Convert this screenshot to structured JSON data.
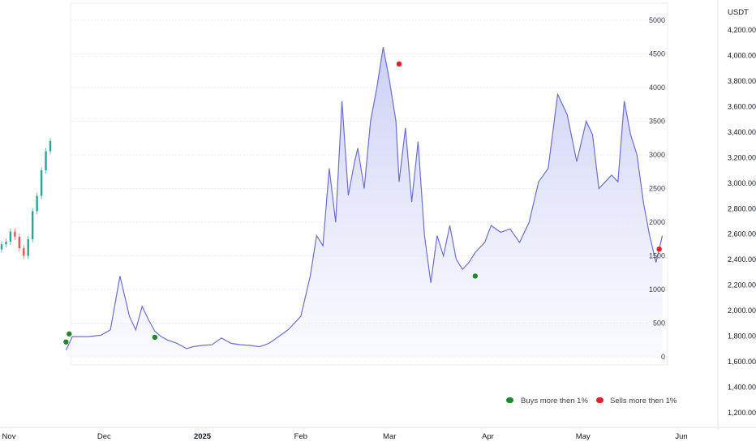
{
  "price_axis": {
    "unit": "USDT",
    "labels": [
      "4,200.00",
      "4,000.00",
      "3,800.00",
      "3,600.00",
      "3,400.00",
      "3,200.00",
      "3,000.00",
      "2,800.00",
      "2,600.00",
      "2,400.00",
      "2,200.00",
      "2,000.00",
      "1,800.00",
      "1,600.00",
      "1,400.00",
      "1,200.00"
    ]
  },
  "time_axis": {
    "labels": [
      {
        "text": "Nov",
        "bold": false
      },
      {
        "text": "Dec",
        "bold": false
      },
      {
        "text": "2025",
        "bold": true
      },
      {
        "text": "Feb",
        "bold": false
      },
      {
        "text": "Mar",
        "bold": false
      },
      {
        "text": "Apr",
        "bold": false
      },
      {
        "text": "May",
        "bold": false
      },
      {
        "text": "Jun",
        "bold": false
      }
    ]
  },
  "legend": {
    "buys_label": "Buys more then 1%",
    "sells_label": "Sells more then 1%",
    "buys_color": "#1e8a2e",
    "sells_color": "#e0202a"
  },
  "colors": {
    "line": "#6b6fcf",
    "fill_top": "#c9ccf5",
    "fill_bottom": "#f6f7fd",
    "grid": "#e1e3ea",
    "candle_up": "#26a69a",
    "candle_down": "#ef5350"
  },
  "chart_data": [
    {
      "type": "area",
      "ylim": [
        0,
        5000
      ],
      "y_ticks": [
        "5000",
        "4500",
        "4000",
        "3500",
        "3000",
        "2500",
        "2000",
        "1500",
        "1000",
        "500",
        "0"
      ],
      "x": [
        "2024-11-19",
        "2024-11-21",
        "2024-11-23",
        "2024-11-26",
        "2024-11-30",
        "2024-12-03",
        "2024-12-06",
        "2024-12-07",
        "2024-12-09",
        "2024-12-11",
        "2024-12-13",
        "2024-12-15",
        "2024-12-17",
        "2024-12-19",
        "2024-12-21",
        "2024-12-24",
        "2024-12-27",
        "2024-12-29",
        "2025-01-01",
        "2025-01-04",
        "2025-01-07",
        "2025-01-10",
        "2025-01-13",
        "2025-01-16",
        "2025-01-19",
        "2025-01-22",
        "2025-01-25",
        "2025-01-28",
        "2025-02-01",
        "2025-02-04",
        "2025-02-06",
        "2025-02-08",
        "2025-02-10",
        "2025-02-12",
        "2025-02-14",
        "2025-02-16",
        "2025-02-18",
        "2025-02-19",
        "2025-02-21",
        "2025-02-23",
        "2025-02-25",
        "2025-02-27",
        "2025-03-01",
        "2025-03-03",
        "2025-03-04",
        "2025-03-06",
        "2025-03-08",
        "2025-03-10",
        "2025-03-12",
        "2025-03-14",
        "2025-03-16",
        "2025-03-18",
        "2025-03-20",
        "2025-03-22",
        "2025-03-24",
        "2025-03-26",
        "2025-03-28",
        "2025-03-31",
        "2025-04-02",
        "2025-04-05",
        "2025-04-08",
        "2025-04-11",
        "2025-04-14",
        "2025-04-17",
        "2025-04-20",
        "2025-04-23",
        "2025-04-26",
        "2025-04-29",
        "2025-05-02",
        "2025-05-04",
        "2025-05-06",
        "2025-05-08",
        "2025-05-10",
        "2025-05-12",
        "2025-05-14",
        "2025-05-16",
        "2025-05-18",
        "2025-05-20",
        "2025-05-22",
        "2025-05-24",
        "2025-05-26"
      ],
      "values": [
        100,
        300,
        300,
        300,
        320,
        400,
        1200,
        1000,
        600,
        400,
        750,
        550,
        380,
        300,
        250,
        200,
        120,
        150,
        170,
        180,
        280,
        200,
        180,
        170,
        150,
        200,
        300,
        400,
        600,
        1200,
        1800,
        1650,
        2800,
        2000,
        3800,
        2400,
        2900,
        3100,
        2500,
        3500,
        4000,
        4600,
        4100,
        3500,
        2600,
        3400,
        2300,
        3200,
        1800,
        1100,
        1800,
        1500,
        1950,
        1450,
        1300,
        1400,
        1550,
        1700,
        1950,
        1850,
        1900,
        1700,
        2000,
        2600,
        2800,
        3900,
        3600,
        2900,
        3500,
        3300,
        2500,
        2600,
        2700,
        2600,
        3800,
        3300,
        3000,
        2300,
        1800,
        1400,
        1800
      ],
      "buys": [
        {
          "x": "2024-11-19",
          "value": 220
        },
        {
          "x": "2024-11-20",
          "value": 340
        },
        {
          "x": "2024-12-17",
          "value": 290
        },
        {
          "x": "2025-03-28",
          "value": 1200
        }
      ],
      "sells": [
        {
          "x": "2025-03-04",
          "value": 4350
        },
        {
          "x": "2025-05-25",
          "value": 1600
        }
      ],
      "legend": [
        "Buys more then 1%",
        "Sells more then 1%"
      ],
      "legend_position": "bottom-right",
      "grid": true
    },
    {
      "type": "candlestick",
      "note_label": "",
      "x": [
        "2024-11-01",
        "2024-11-02",
        "2024-11-03",
        "2024-11-04",
        "2024-11-05",
        "2024-11-06",
        "2024-11-07",
        "2024-11-08",
        "2024-11-09",
        "2024-11-10",
        "2024-11-11",
        "2024-11-12"
      ],
      "values": [
        2520,
        2540,
        2620,
        2580,
        2490,
        2430,
        2560,
        2780,
        2900,
        3100,
        3250,
        3330
      ],
      "ylim": [
        1200,
        4200
      ],
      "grid": false
    }
  ]
}
